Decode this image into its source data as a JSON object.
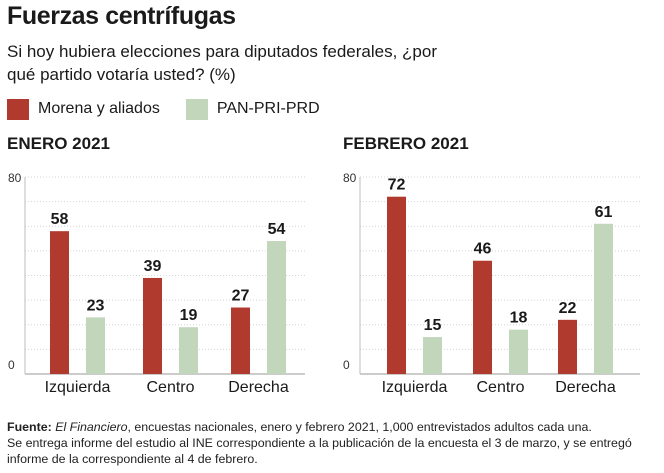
{
  "title": "Fuerzas centrífugas",
  "subtitle": "Si hoy hubiera elecciones para diputados federales, ¿por qué partido votaría usted? (%)",
  "legend": [
    {
      "label": "Morena y aliados",
      "color": "#b03a2e"
    },
    {
      "label": "PAN-PRI-PRD",
      "color": "#c2d6bc"
    }
  ],
  "chart_data": [
    {
      "type": "bar",
      "title": "ENERO 2021",
      "categories": [
        "Izquierda",
        "Centro",
        "Derecha"
      ],
      "series": [
        {
          "name": "Morena y aliados",
          "values": [
            58,
            39,
            27
          ]
        },
        {
          "name": "PAN-PRI-PRD",
          "values": [
            23,
            19,
            54
          ]
        }
      ],
      "ylim": [
        0,
        80
      ],
      "yticks": [
        "80",
        "0"
      ],
      "grid": true
    },
    {
      "type": "bar",
      "title": "FEBRERO 2021",
      "categories": [
        "Izquierda",
        "Centro",
        "Derecha"
      ],
      "series": [
        {
          "name": "Morena y aliados",
          "values": [
            72,
            46,
            22
          ]
        },
        {
          "name": "PAN-PRI-PRD",
          "values": [
            15,
            18,
            61
          ]
        }
      ],
      "ylim": [
        0,
        80
      ],
      "yticks": [
        "80",
        "0"
      ],
      "grid": true
    }
  ],
  "footer": {
    "label": "Fuente:",
    "source_name": "El Financiero",
    "text1": ", encuestas nacionales, enero y febrero 2021, 1,000 entrevistados adultos cada una.",
    "text2": "Se entrega informe del estudio al INE correspondiente a la publicación de la encuesta el 3 de marzo, y se entregó informe de la correspondiente al 4 de febrero."
  }
}
